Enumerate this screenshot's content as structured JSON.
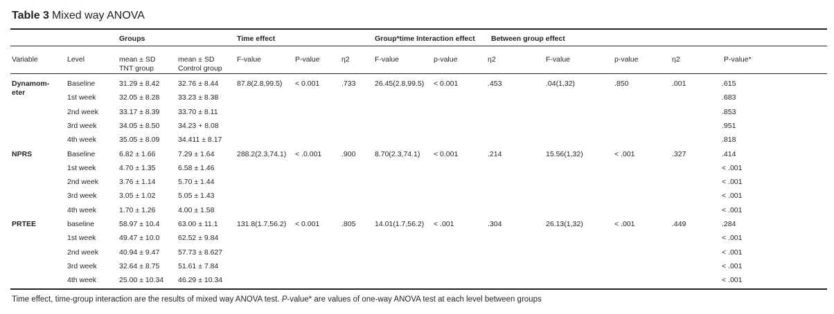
{
  "table": {
    "label": "Table 3",
    "caption": "Mixed way ANOVA",
    "group_headers": {
      "groups": "Groups",
      "time_effect": "Time effect",
      "interaction": "Group*time Interaction effect",
      "between": "Between group effect"
    },
    "col_headers": {
      "variable": "Variable",
      "level": "Level",
      "tnt": [
        "mean ± SD",
        "TNT group"
      ],
      "control": [
        "mean ± SD",
        "Control group"
      ],
      "time_f": "F-value",
      "time_p": "P-value",
      "time_eta": "η2",
      "int_f": "F-value",
      "int_p": "p-value",
      "int_eta": "η2",
      "btw_f": "F-value",
      "btw_p": "p-value",
      "btw_eta": "η2",
      "p_star": "P-value*"
    },
    "sections": [
      {
        "variable": [
          "Dynamom-",
          "eter"
        ],
        "time_f": "87.8(2.8,99.5)",
        "time_p": "< 0.001",
        "time_eta": ".733",
        "int_f": "26.45(2.8,99.5)",
        "int_p": "< 0.001",
        "int_eta": ".453",
        "btw_f": ".04(1,32)",
        "btw_p": ".850",
        "btw_eta": ".001",
        "rows": [
          {
            "level": "Baseline",
            "tnt": "31.29 ± 8.42",
            "control": "32.76 ± 8.44",
            "p": ".615"
          },
          {
            "level": "1st week",
            "tnt": "32.05 ± 8.28",
            "control": "33.23 ± 8.38",
            "p": ".683"
          },
          {
            "level": "2nd week",
            "tnt": "33.17 ± 8.39",
            "control": "33.70 ± 8.11",
            "p": ".853"
          },
          {
            "level": "3rd week",
            "tnt": "34.05 ± 8.50",
            "control": "34.23 + 8.08",
            "p": ".951"
          },
          {
            "level": "4th week",
            "tnt": "35.05 ± 8.09",
            "control": "34.411 ± 8.17",
            "p": ".818"
          }
        ]
      },
      {
        "variable": [
          "NPRS"
        ],
        "time_f": "288.2(2.3,74.1)",
        "time_p": "< .0.001",
        "time_eta": ".900",
        "int_f": "8.70(2.3,74.1)",
        "int_p": "< 0.001",
        "int_eta": ".214",
        "btw_f": "15.56(1,32)",
        "btw_p": "< .001",
        "btw_eta": ".327",
        "rows": [
          {
            "level": "Baseline",
            "tnt": "6.82 ± 1.66",
            "control": "7.29 ± 1.64",
            "p": ".414"
          },
          {
            "level": "1st week",
            "tnt": "4.70 ± 1.35",
            "control": "6.58 ± 1.46",
            "p": "< .001"
          },
          {
            "level": "2nd week",
            "tnt": "3.76 ± 1.14",
            "control": "5.70 ± 1.44",
            "p": "< .001"
          },
          {
            "level": "3rd week",
            "tnt": "3.05 ± 1.02",
            "control": "5.05 ± 1.43",
            "p": "< .001"
          },
          {
            "level": "4th week",
            "tnt": "1.70 ± 1.26",
            "control": "4.00 ± 1.58",
            "p": "< .001"
          }
        ]
      },
      {
        "variable": [
          "PRTEE"
        ],
        "time_f": "131.8(1.7,56.2)",
        "time_p": "< 0.001",
        "time_eta": ".805",
        "int_f": "14.01(1.7,56.2)",
        "int_p": "< .001",
        "int_eta": ".304",
        "btw_f": "26.13(1,32)",
        "btw_p": "< .001",
        "btw_eta": ".449",
        "rows": [
          {
            "level": "baseline",
            "tnt": "58.97 ± 10.4",
            "control": "63.00 ± 11.1",
            "p": ".284"
          },
          {
            "level": "1st week",
            "tnt": "49.47 ± 10.0",
            "control": "62.52 ± 9.84",
            "p": "< .001"
          },
          {
            "level": "2nd week",
            "tnt": "40.94 ± 9.47",
            "control": "57.73 ± 8.627",
            "p": "< .001"
          },
          {
            "level": "3rd week",
            "tnt": "32.64 ± 8.75",
            "control": "51.61 ± 7.84",
            "p": "< .001"
          },
          {
            "level": "4th week",
            "tnt": "25.00 ± 10.34",
            "control": "46.29 ± 10.34",
            "p": "< .001"
          }
        ]
      }
    ],
    "footnote": {
      "part1": "Time effect, time-group interaction are the results of mixed way ANOVA test. ",
      "italic": "P",
      "part2": "-value* are values of one-way ANOVA test at each level between groups"
    }
  }
}
